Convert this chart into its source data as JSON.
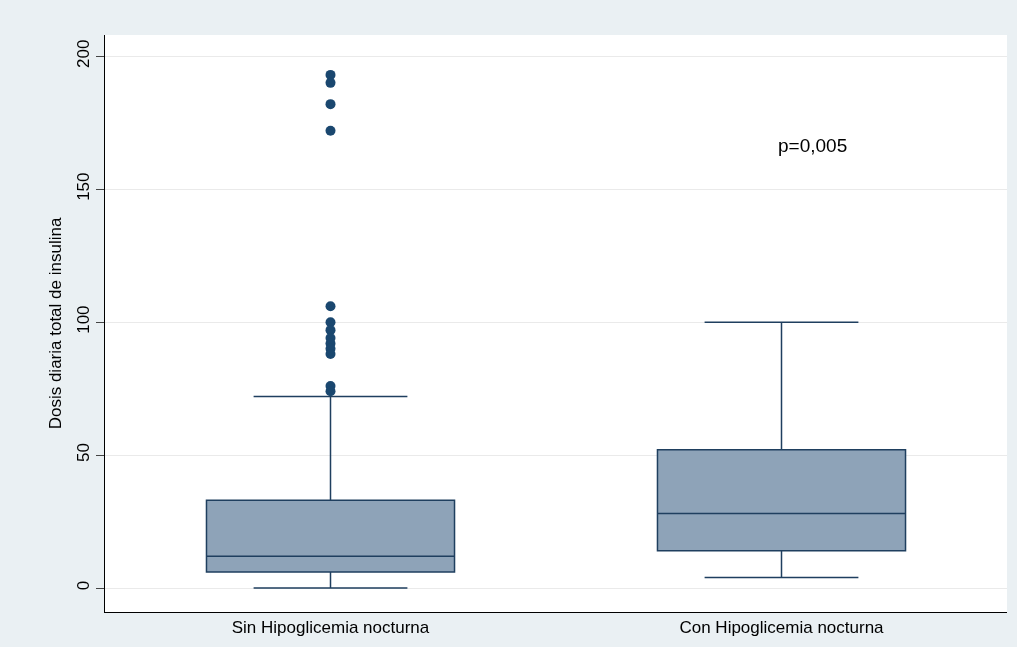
{
  "chart_data": {
    "type": "box",
    "ylabel": "Dosis diaria total de insulina",
    "categories": [
      "Sin Hipoglicemia nocturna",
      "Con Hipoglicemia nocturna"
    ],
    "boxes": [
      {
        "low": 0,
        "q1": 6,
        "median": 12,
        "q3": 33,
        "high": 72,
        "outliers": [
          193,
          190,
          182,
          172,
          106,
          100,
          97,
          94,
          92,
          90,
          88,
          76,
          74
        ]
      },
      {
        "low": 4,
        "q1": 14,
        "median": 28,
        "q3": 52,
        "high": 100
      }
    ],
    "color": "#8ea3b8",
    "ylim": [
      -9,
      208
    ],
    "yticks": [
      0,
      50,
      100,
      150,
      200
    ],
    "grid": "y",
    "annotations": [
      "p=0,005"
    ]
  }
}
